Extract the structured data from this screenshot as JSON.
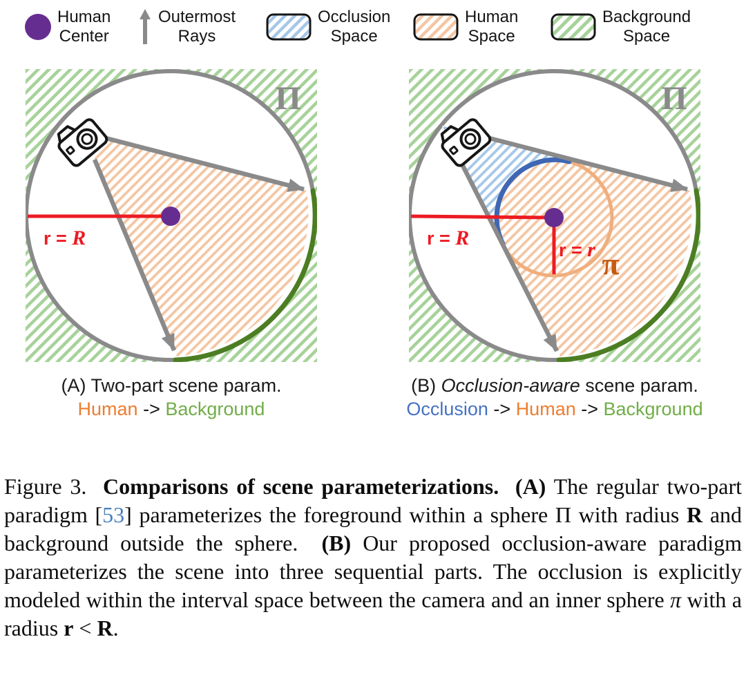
{
  "colors": {
    "purple": "#662D91",
    "red": "#EC1B23",
    "gray_stroke": "#8A8A8A",
    "gray_label": "#8A8A8A",
    "hatch_green": "#A7D29A",
    "hatch_orange": "#F4C6A3",
    "hatch_blue": "#A6C7E7",
    "dark_green_arc": "#4C7D23",
    "inner_circle_orange": "#F0AE7D",
    "inner_arc_blue": "#3E66B5",
    "pi_label_orange": "#C55A11",
    "caption_orange": "#ED7D31",
    "caption_green": "#70AD47",
    "caption_blue": "#4472C4",
    "citation_blue": "#4B7FBF",
    "icon_black": "#161616"
  },
  "legend": {
    "items": [
      {
        "icon": "human-center-dot",
        "line1": "Human",
        "line2": "Center"
      },
      {
        "icon": "outermost-rays-arrow",
        "line1": "Outermost",
        "line2": "Rays"
      },
      {
        "icon": "occlusion-space-swatch",
        "line1": "Occlusion",
        "line2": "Space"
      },
      {
        "icon": "human-space-swatch",
        "line1": "Human",
        "line2": "Space"
      },
      {
        "icon": "background-space-swatch",
        "line1": "Background",
        "line2": "Space"
      }
    ]
  },
  "diagram_a": {
    "sphere_label": "Π",
    "radius_prefix": "r = ",
    "radius_symbol": "R"
  },
  "diagram_b": {
    "sphere_label": "Π",
    "outer_radius_prefix": "r = ",
    "outer_radius_symbol": "R",
    "inner_radius_prefix": "r = ",
    "inner_radius_symbol": "r",
    "inner_sphere_label": "π"
  },
  "caption_a": {
    "line1": [
      {
        "t": "(A) Two-part scene param."
      }
    ],
    "line2": [
      {
        "t": "Human",
        "c": "orange"
      },
      {
        "t": " -> "
      },
      {
        "t": "Background",
        "c": "green"
      }
    ]
  },
  "caption_b": {
    "line1": [
      {
        "t": "(B) "
      },
      {
        "t": "Occlusion-aware",
        "i": true
      },
      {
        "t": " scene param."
      }
    ],
    "line2": [
      {
        "t": "Occlusion",
        "c": "blue"
      },
      {
        "t": " -> "
      },
      {
        "t": "Human",
        "c": "orange"
      },
      {
        "t": " -> "
      },
      {
        "t": "Background",
        "c": "green"
      }
    ]
  },
  "figure_caption": [
    {
      "t": "Figure 3.  "
    },
    {
      "t": "Comparisons of scene parameterizations.",
      "b": true
    },
    {
      "t": "  "
    },
    {
      "t": "(A)",
      "b": true
    },
    {
      "t": " The regular two-part paradigm ["
    },
    {
      "t": "53",
      "c": "link"
    },
    {
      "t": "] parameterizes the foreground within a sphere Π with radius "
    },
    {
      "t": "R",
      "b": true
    },
    {
      "t": " and background outside the sphere.  "
    },
    {
      "t": "(B)",
      "b": true
    },
    {
      "t": " Our proposed occlusion-aware paradigm parameterizes the scene into three sequential parts. The occlusion is explicitly modeled within the interval space between the camera and an inner sphere "
    },
    {
      "t": "π",
      "i": true
    },
    {
      "t": " with a radius "
    },
    {
      "t": "r",
      "b": true
    },
    {
      "t": " < "
    },
    {
      "t": "R",
      "b": true
    },
    {
      "t": "."
    }
  ]
}
